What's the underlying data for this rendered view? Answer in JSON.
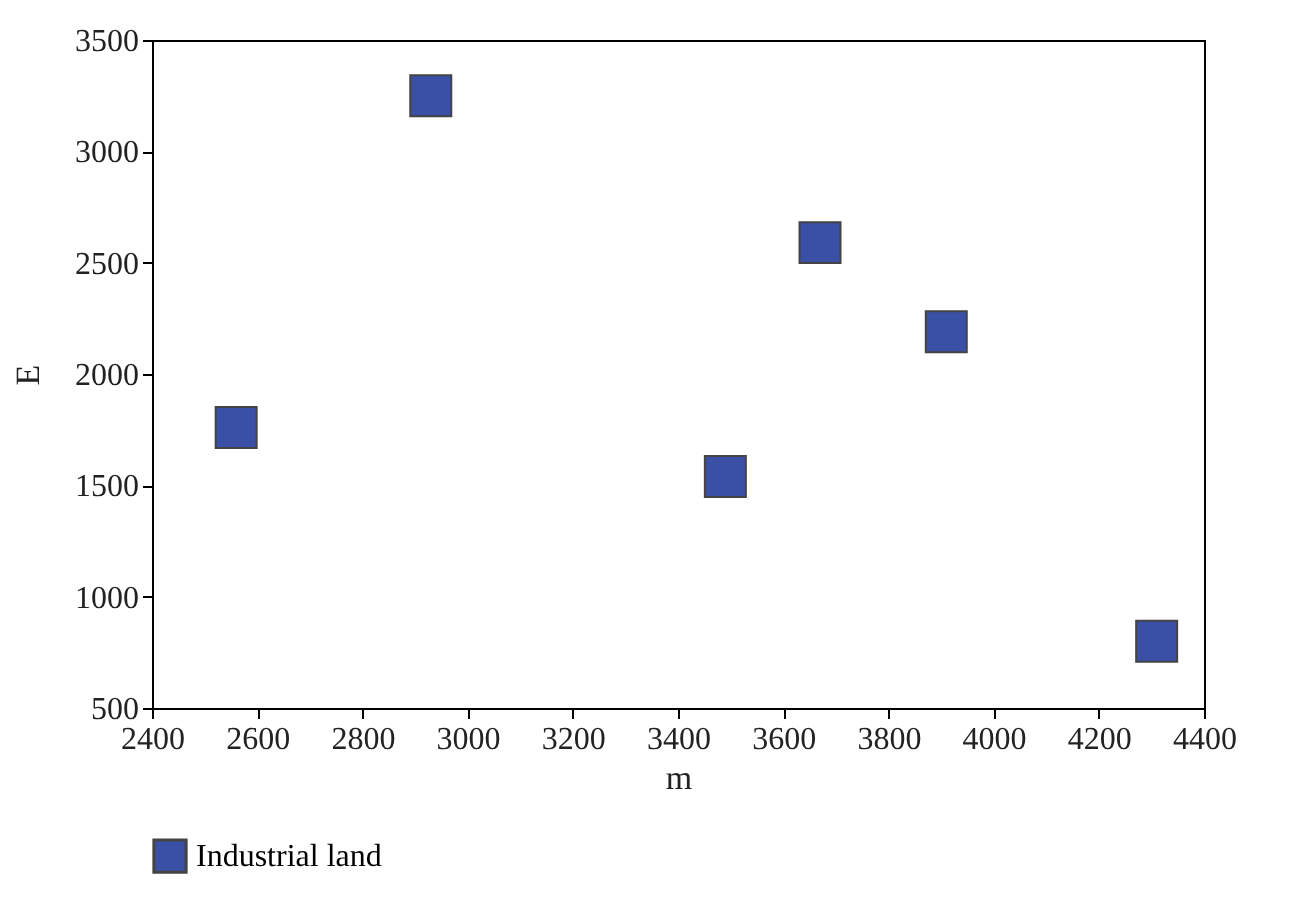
{
  "chart_data": {
    "type": "scatter",
    "xlabel": "m",
    "ylabel": "E",
    "x": [
      2560,
      2930,
      3490,
      3670,
      3910,
      4310
    ],
    "series": [
      {
        "name": "Industrial land",
        "color": "#3a4fa6",
        "values": [
          1760,
          3250,
          1540,
          2590,
          2190,
          800
        ]
      }
    ],
    "xlim": [
      2400,
      4400
    ],
    "xticks": [
      2400,
      2600,
      2800,
      3000,
      3200,
      3400,
      3600,
      3800,
      4000,
      4200,
      4400
    ],
    "ylim": [
      500,
      3500
    ],
    "yticks": [
      500,
      1000,
      1500,
      2000,
      2500,
      3000,
      3500
    ],
    "marker": "square",
    "grid": false,
    "legend": "bottom left"
  }
}
